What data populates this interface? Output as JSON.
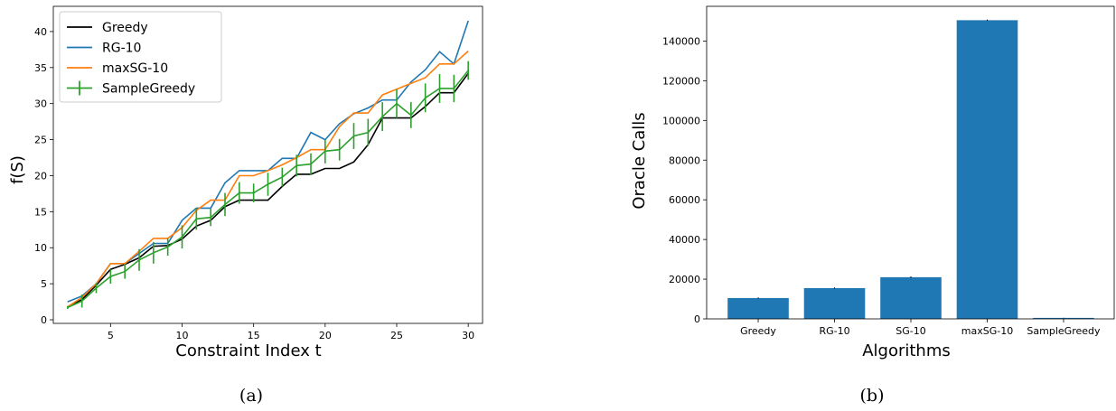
{
  "captions": [
    "(a)",
    "(b)"
  ],
  "colors": {
    "Greedy": "#000000",
    "RG-10": "#1f77b4",
    "maxSG-10": "#ff7f0e",
    "SampleGreedy": "#2ca02c",
    "bar": "#1f77b4"
  },
  "chart_data": [
    {
      "type": "line",
      "xlabel": "Constraint Index t",
      "ylabel": "f(S)",
      "xlim": [
        1,
        31
      ],
      "ylim": [
        -0.5,
        43.5
      ],
      "xticks": [
        5,
        10,
        15,
        20,
        25,
        30
      ],
      "yticks": [
        0,
        5,
        10,
        15,
        20,
        25,
        30,
        35,
        40
      ],
      "legend_position": "top-left",
      "x": [
        2,
        3,
        4,
        5,
        6,
        7,
        8,
        9,
        10,
        11,
        12,
        13,
        14,
        15,
        16,
        17,
        18,
        19,
        20,
        21,
        22,
        23,
        24,
        25,
        26,
        27,
        28,
        29,
        30
      ],
      "series": [
        {
          "name": "Greedy",
          "values": [
            1.8,
            2.8,
            4.8,
            7.0,
            7.7,
            8.6,
            10.2,
            10.3,
            11.2,
            13.0,
            13.8,
            15.7,
            16.6,
            16.6,
            16.6,
            18.5,
            20.2,
            20.2,
            21.0,
            21.0,
            21.9,
            24.3,
            28.0,
            28.0,
            28.0,
            29.6,
            31.5,
            31.5,
            34.2
          ]
        },
        {
          "name": "RG-10",
          "values": [
            2.5,
            3.3,
            5.0,
            7.8,
            7.8,
            9.2,
            10.6,
            10.6,
            13.8,
            15.5,
            15.5,
            19.0,
            20.7,
            20.7,
            20.7,
            22.4,
            22.4,
            26.0,
            25.0,
            27.2,
            28.6,
            29.4,
            30.5,
            30.5,
            33.0,
            34.7,
            37.2,
            35.5,
            41.5
          ]
        },
        {
          "name": "maxSG-10",
          "values": [
            1.8,
            3.1,
            5.0,
            7.8,
            7.8,
            9.5,
            11.3,
            11.3,
            12.8,
            15.2,
            16.6,
            16.6,
            20.0,
            20.0,
            20.7,
            21.5,
            22.5,
            23.6,
            23.6,
            26.8,
            28.7,
            28.7,
            31.2,
            32.0,
            32.8,
            33.6,
            35.5,
            35.5,
            37.3
          ]
        },
        {
          "name": "SampleGreedy",
          "values": [
            1.7,
            2.6,
            4.4,
            6.0,
            6.7,
            8.3,
            9.3,
            10.1,
            11.5,
            14.0,
            14.2,
            16.0,
            17.6,
            17.6,
            18.8,
            19.8,
            21.4,
            21.6,
            23.4,
            23.6,
            25.5,
            26.0,
            28.2,
            30.0,
            28.4,
            30.8,
            32.1,
            32.1,
            34.6
          ],
          "errors": [
            0.2,
            0.9,
            0.7,
            1.0,
            1.0,
            1.5,
            1.5,
            1.2,
            1.6,
            1.5,
            1.2,
            1.6,
            1.5,
            1.3,
            1.6,
            1.3,
            1.5,
            1.5,
            1.7,
            1.5,
            1.8,
            1.9,
            2.0,
            2.0,
            1.8,
            2.0,
            2.0,
            1.9,
            1.3
          ]
        }
      ]
    },
    {
      "type": "bar",
      "xlabel": "Algorithms",
      "ylabel": "Oracle Calls",
      "ylim": [
        0,
        157500
      ],
      "yticks": [
        0,
        20000,
        40000,
        60000,
        80000,
        100000,
        120000,
        140000
      ],
      "categories": [
        "Greedy",
        "RG-10",
        "SG-10",
        "maxSG-10",
        "SampleGreedy"
      ],
      "values": [
        10500,
        15500,
        21000,
        150500,
        500
      ],
      "errors": [
        300,
        300,
        400,
        300,
        50
      ]
    }
  ]
}
